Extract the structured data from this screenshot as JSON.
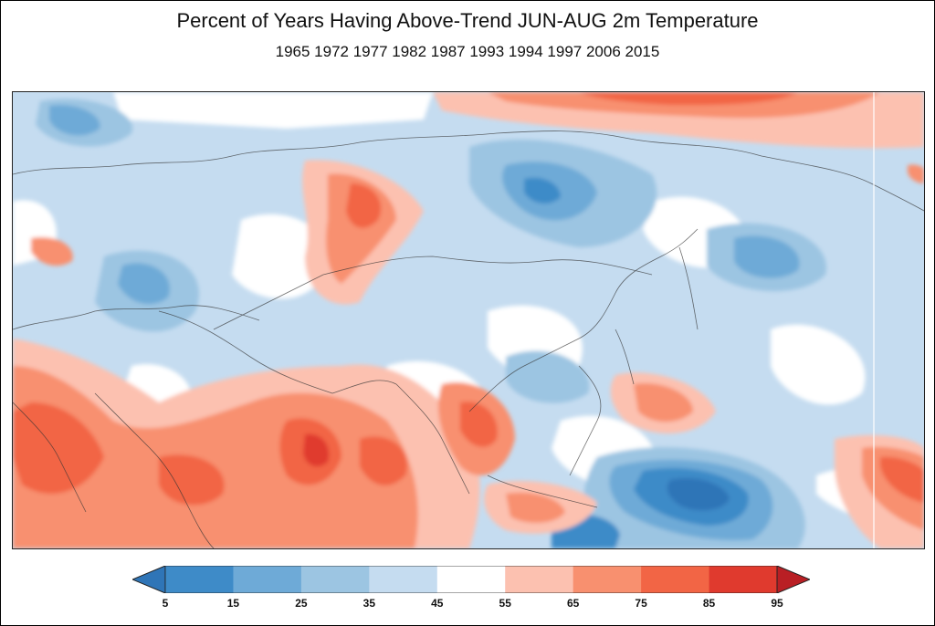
{
  "title": "Percent of Years Having Above-Trend JUN-AUG 2m Temperature",
  "subtitle": "1965 1972 1977 1982 1987 1993 1994 1997 2006 2015",
  "colorbar": {
    "ticks": [
      "5",
      "15",
      "25",
      "35",
      "45",
      "55",
      "65",
      "75",
      "85",
      "95"
    ],
    "colors": [
      "#2f75b7",
      "#3e8bc8",
      "#6eaad7",
      "#9cc5e2",
      "#c5dcf0",
      "#ffffff",
      "#fcc1b0",
      "#f8906f",
      "#f26545",
      "#e03a2e",
      "#b91f24"
    ]
  }
}
